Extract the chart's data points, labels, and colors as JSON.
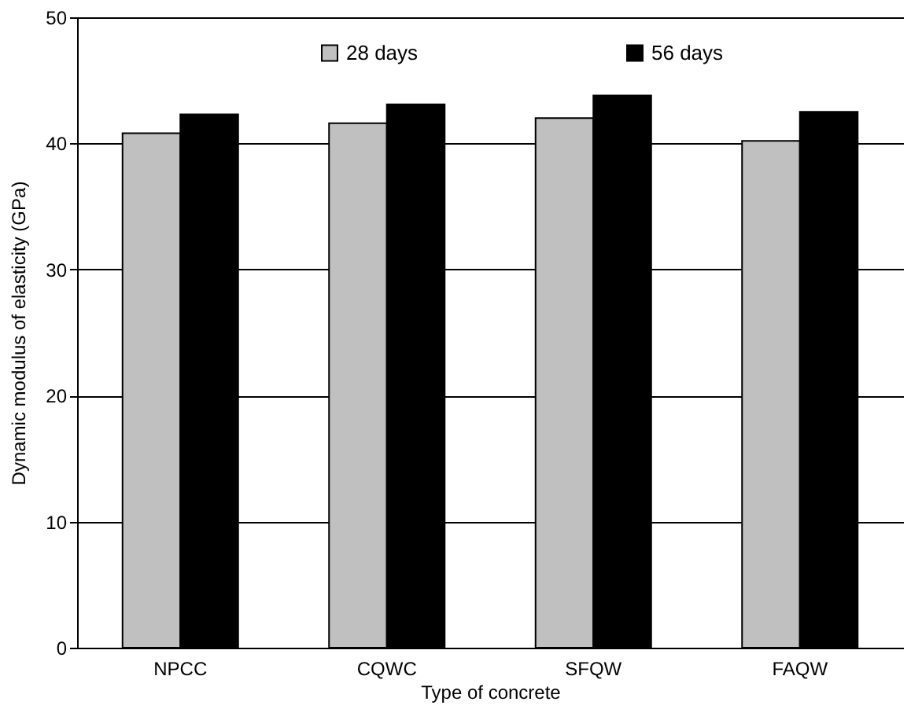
{
  "chart_data": {
    "type": "bar",
    "xlabel": "Type of concrete",
    "ylabel": "Dynamic modulus of elasticity (GPa)",
    "categories": [
      "NPCC",
      "CQWC",
      "SFQW",
      "FAQW"
    ],
    "series": [
      {
        "name": "28 days",
        "color": "#c0c0c0",
        "values": [
          40.8,
          41.6,
          42.0,
          40.2
        ]
      },
      {
        "name": "56 days",
        "color": "#000000",
        "values": [
          42.3,
          43.1,
          43.8,
          42.5
        ]
      }
    ],
    "ylim": [
      0,
      50
    ],
    "yticks": [
      0,
      10,
      20,
      30,
      40,
      50
    ],
    "grid": "y",
    "legend": "top"
  }
}
